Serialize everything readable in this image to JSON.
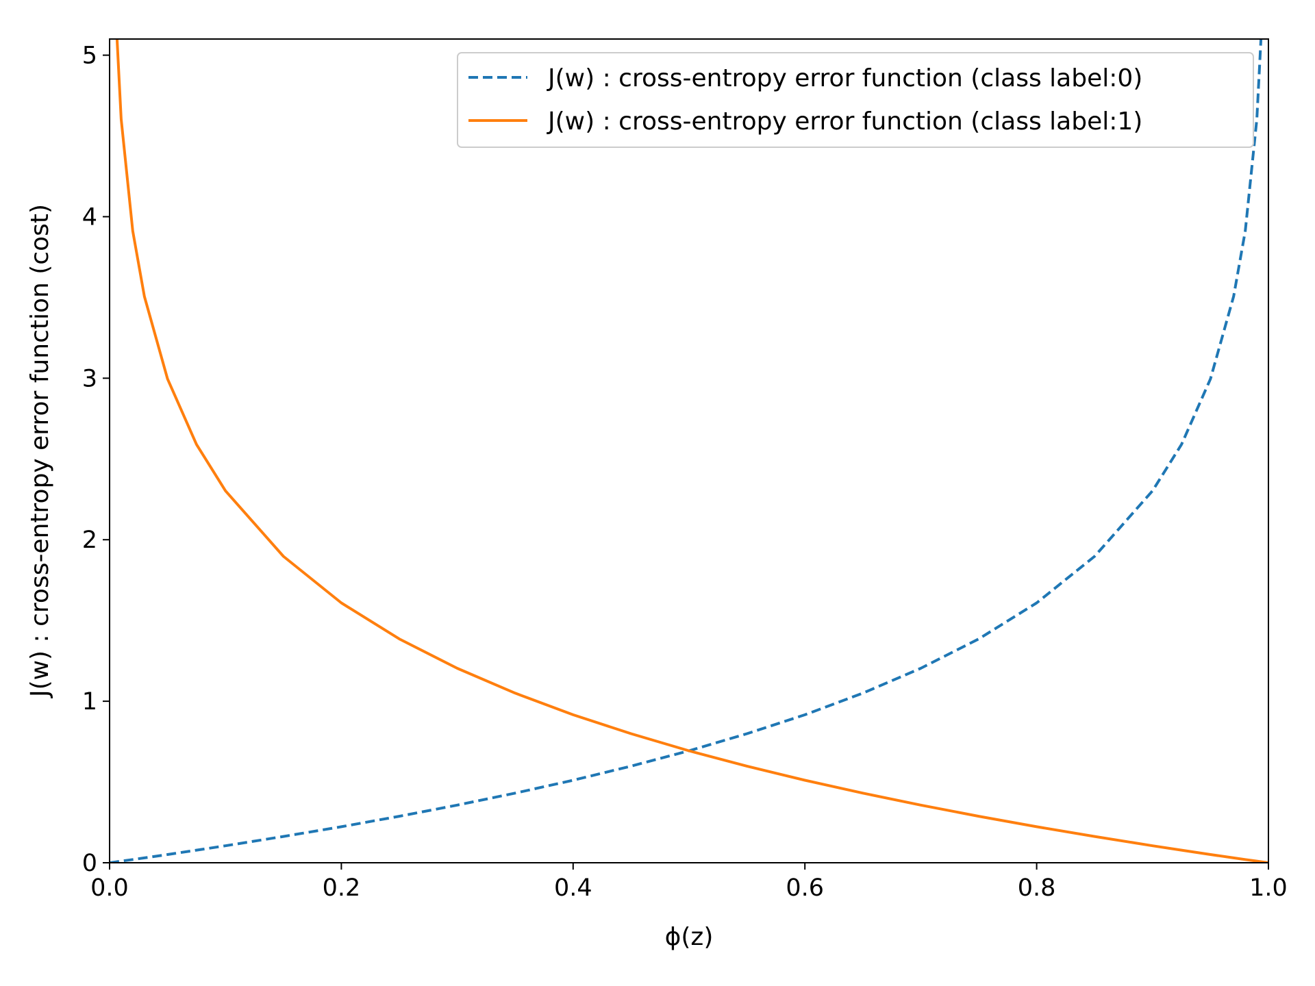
{
  "chart_data": {
    "type": "line",
    "title": "",
    "xlabel": "ϕ(z)",
    "ylabel": "J(w) : cross-entropy error function (cost)",
    "xlim": [
      0.0,
      1.0
    ],
    "ylim": [
      0.0,
      5.1
    ],
    "xticks": [
      0.0,
      0.2,
      0.4,
      0.6,
      0.8,
      1.0
    ],
    "xtick_labels": [
      "0.0",
      "0.2",
      "0.4",
      "0.6",
      "0.8",
      "1.0"
    ],
    "yticks": [
      0,
      1,
      2,
      3,
      4,
      5
    ],
    "ytick_labels": [
      "0",
      "1",
      "2",
      "3",
      "4",
      "5"
    ],
    "grid": false,
    "legend_position": "top-right",
    "x": [
      0.0,
      0.005,
      0.01,
      0.02,
      0.03,
      0.05,
      0.075,
      0.1,
      0.15,
      0.2,
      0.25,
      0.3,
      0.35,
      0.4,
      0.45,
      0.5,
      0.55,
      0.6,
      0.65,
      0.7,
      0.75,
      0.8,
      0.85,
      0.9,
      0.925,
      0.95,
      0.97,
      0.98,
      0.99,
      0.995,
      1.0
    ],
    "series": [
      {
        "name": "J(w) : cross-entropy error function (class label:0)",
        "color": "#1f77b4",
        "line_style": "dashed",
        "values": [
          0.0,
          0.005,
          0.01,
          0.02,
          0.03,
          0.051,
          0.078,
          0.105,
          0.163,
          0.223,
          0.288,
          0.357,
          0.431,
          0.511,
          0.598,
          0.693,
          0.799,
          0.916,
          1.05,
          1.204,
          1.386,
          1.609,
          1.897,
          2.303,
          2.59,
          2.996,
          3.507,
          3.912,
          4.605,
          5.298,
          5.6
        ]
      },
      {
        "name": "J(w) : cross-entropy error function (class label:1)",
        "color": "#ff7f0e",
        "line_style": "solid",
        "values": [
          5.6,
          5.298,
          4.605,
          3.912,
          3.507,
          2.996,
          2.59,
          2.303,
          1.897,
          1.609,
          1.386,
          1.204,
          1.05,
          0.916,
          0.799,
          0.693,
          0.598,
          0.511,
          0.431,
          0.357,
          0.288,
          0.223,
          0.163,
          0.105,
          0.078,
          0.051,
          0.03,
          0.02,
          0.01,
          0.005,
          0.0
        ]
      }
    ]
  }
}
